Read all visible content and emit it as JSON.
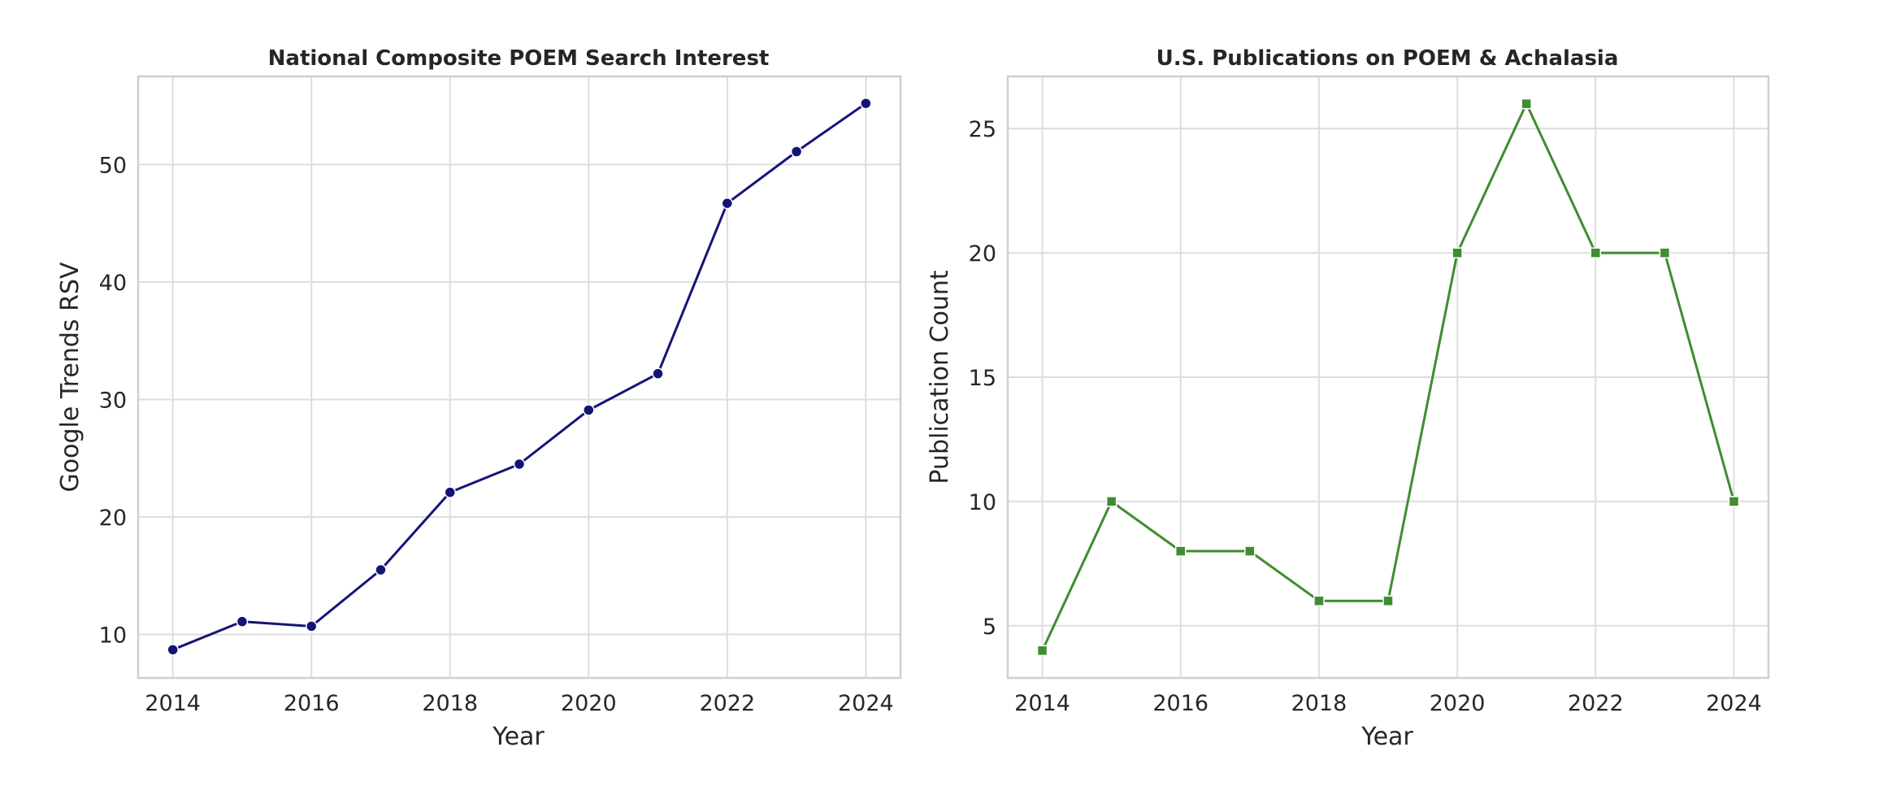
{
  "chart_data": [
    {
      "type": "line",
      "title": "National Composite POEM Search Interest",
      "xlabel": "Year",
      "ylabel": "Google Trends RSV",
      "x": [
        2014,
        2015,
        2016,
        2017,
        2018,
        2019,
        2020,
        2021,
        2022,
        2023,
        2024
      ],
      "series": [
        {
          "values": [
            8.7,
            11.1,
            10.7,
            15.5,
            22.1,
            24.5,
            29.1,
            32.2,
            46.7,
            51.1,
            55.2
          ],
          "color": "#141478",
          "marker": "circle"
        }
      ],
      "xlim": [
        2013.5,
        2024.5
      ],
      "ylim": [
        6.3,
        57.5
      ],
      "xticks": [
        2014,
        2016,
        2018,
        2020,
        2022,
        2024
      ],
      "yticks": [
        10,
        20,
        30,
        40,
        50
      ],
      "grid": true,
      "legend": "none"
    },
    {
      "type": "line",
      "title": "U.S. Publications on POEM & Achalasia",
      "xlabel": "Year",
      "ylabel": "Publication Count",
      "x": [
        2014,
        2015,
        2016,
        2017,
        2018,
        2019,
        2020,
        2021,
        2022,
        2023,
        2024
      ],
      "series": [
        {
          "values": [
            4,
            10,
            8,
            8,
            6,
            6,
            20,
            26,
            20,
            20,
            10
          ],
          "color": "#3f8c31",
          "marker": "square"
        }
      ],
      "xlim": [
        2013.5,
        2024.5
      ],
      "ylim": [
        2.9,
        27.1
      ],
      "xticks": [
        2014,
        2016,
        2018,
        2020,
        2022,
        2024
      ],
      "yticks": [
        5,
        10,
        15,
        20,
        25
      ],
      "grid": true,
      "legend": "none"
    }
  ]
}
